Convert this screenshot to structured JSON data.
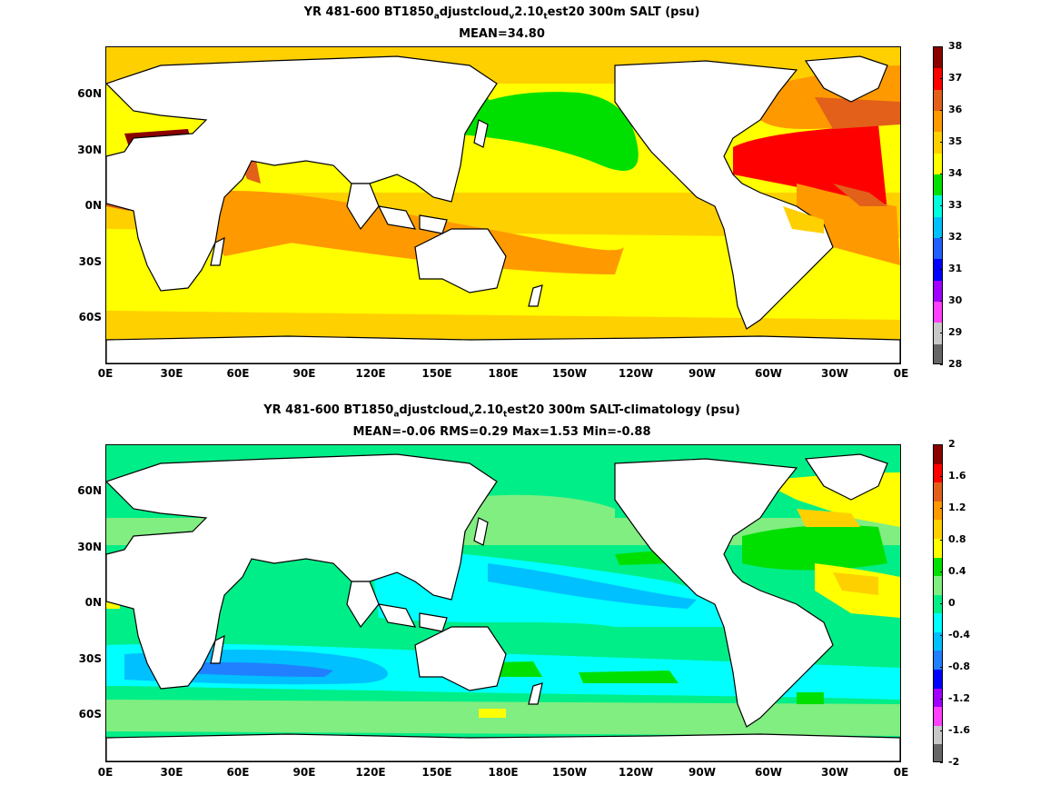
{
  "top": {
    "title_prefix": "YR 481-600 BT1850",
    "title_sub1": "a",
    "title_mid1": "djustcloud",
    "title_sub2": "v",
    "title_mid2": "2.10",
    "title_sub3": "t",
    "title_suffix": "est20 300m SALT (psu)",
    "stats": "MEAN=34.80",
    "colorbar_labels": [
      "38",
      "37",
      "36",
      "35",
      "34",
      "33",
      "32",
      "31",
      "30",
      "29",
      "28"
    ],
    "colorbar_colors": [
      "#8b0000",
      "#ff0000",
      "#e2601a",
      "#ff9900",
      "#ffd000",
      "#ffff00",
      "#00e000",
      "#00ffdd",
      "#00c0ff",
      "#2060ff",
      "#0000ff",
      "#a000ff",
      "#ff40ff",
      "#c8c8c8",
      "#666666"
    ]
  },
  "bottom": {
    "title_prefix": "YR 481-600 BT1850",
    "title_sub1": "a",
    "title_mid1": "djustcloud",
    "title_sub2": "v",
    "title_mid2": "2.10",
    "title_sub3": "t",
    "title_suffix": "est20 300m SALT-climatology (psu)",
    "stats": "MEAN=-0.06   RMS=0.29   Max=1.53   Min=-0.88",
    "colorbar_labels": [
      "2",
      "1.6",
      "1.2",
      "0.8",
      "0.4",
      "0",
      "-0.4",
      "-0.8",
      "-1.2",
      "-1.6",
      "-2"
    ],
    "colorbar_colors": [
      "#8b0000",
      "#ff0000",
      "#e2601a",
      "#ff9900",
      "#ffd000",
      "#ffff00",
      "#00e000",
      "#80ee80",
      "#00ee88",
      "#00ffff",
      "#00c0ff",
      "#2080ff",
      "#0000ff",
      "#a000ff",
      "#ff40ff",
      "#c8c8c8",
      "#666666"
    ]
  },
  "x_ticks": [
    "0E",
    "30E",
    "60E",
    "90E",
    "120E",
    "150E",
    "180E",
    "150W",
    "120W",
    "90W",
    "60W",
    "30W",
    "0E"
  ],
  "y_ticks": [
    "60N",
    "30N",
    "0N",
    "30S",
    "60S"
  ]
}
